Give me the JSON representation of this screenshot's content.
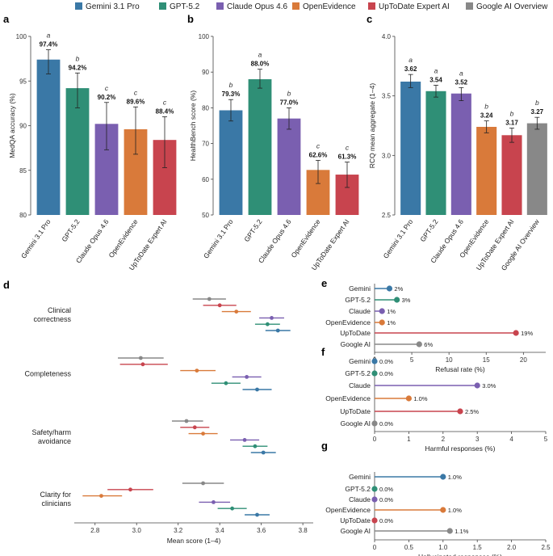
{
  "legend": [
    {
      "name": "Gemini 3.1 Pro",
      "color": "#3a78a6"
    },
    {
      "name": "GPT-5.2",
      "color": "#2f8f76"
    },
    {
      "name": "Claude Opus 4.6",
      "color": "#7a5fb0"
    },
    {
      "name": "OpenEvidence",
      "color": "#d97a3a"
    },
    {
      "name": "UpToDate Expert AI",
      "color": "#c8444e"
    },
    {
      "name": "Google AI Overview",
      "color": "#888888"
    }
  ],
  "chart_data": [
    {
      "panel": "a",
      "type": "bar",
      "ylabel": "MedQA accuracy (%)",
      "ylim": [
        80,
        100
      ],
      "yticks": [
        "80",
        "85",
        "90",
        "95",
        "100"
      ],
      "categories": [
        "Gemini 3.1 Pro",
        "GPT-5.2",
        "Claude Opus 4.6",
        "OpenEvidence",
        "UpToDate Expert AI"
      ],
      "values": [
        97.4,
        94.2,
        90.2,
        89.6,
        88.4
      ],
      "value_labels": [
        "97.4%",
        "94.2%",
        "90.2%",
        "89.6%",
        "88.4%"
      ],
      "err_low": [
        95.8,
        92.0,
        87.3,
        86.8,
        85.3
      ],
      "err_high": [
        98.5,
        95.9,
        92.6,
        92.1,
        91.0
      ],
      "significance": [
        "a",
        "b",
        "c",
        "c",
        "c"
      ]
    },
    {
      "panel": "b",
      "type": "bar",
      "ylabel": "HealthBench score (%)",
      "ylim": [
        50,
        100
      ],
      "yticks": [
        "50",
        "60",
        "70",
        "80",
        "90",
        "100"
      ],
      "categories": [
        "Gemini 3.1 Pro",
        "GPT-5.2",
        "Claude Opus 4.6",
        "OpenEvidence",
        "UpToDate Expert AI"
      ],
      "values": [
        79.3,
        88.0,
        77.0,
        62.6,
        61.3
      ],
      "value_labels": [
        "79.3%",
        "88.0%",
        "77.0%",
        "62.6%",
        "61.3%"
      ],
      "err_low": [
        76.3,
        85.5,
        74.0,
        58.8,
        57.7
      ],
      "err_high": [
        82.3,
        90.8,
        80.0,
        65.3,
        64.8
      ],
      "significance": [
        "b",
        "a",
        "b",
        "c",
        "c"
      ]
    },
    {
      "panel": "c",
      "type": "bar",
      "ylabel": "RCQ mean aggregate (1–4)",
      "ylim": [
        2.5,
        4.0
      ],
      "yticks": [
        "2.5",
        "3.0",
        "3.5",
        "4.0"
      ],
      "categories": [
        "Gemini 3.1 Pro",
        "GPT-5.2",
        "Claude Opus 4.6",
        "OpenEvidence",
        "UpToDate Expert AI",
        "Google AI Overview"
      ],
      "values": [
        3.62,
        3.54,
        3.52,
        3.24,
        3.17,
        3.27
      ],
      "value_labels": [
        "3.62",
        "3.54",
        "3.52",
        "3.24",
        "3.17",
        "3.27"
      ],
      "err_low": [
        3.57,
        3.49,
        3.46,
        3.19,
        3.11,
        3.22
      ],
      "err_high": [
        3.68,
        3.59,
        3.57,
        3.29,
        3.23,
        3.32
      ],
      "significance": [
        "a",
        "a",
        "a",
        "b",
        "b",
        "b"
      ]
    },
    {
      "panel": "d",
      "type": "scatter",
      "xlabel": "Mean score (1–4)",
      "xlim": [
        2.7,
        3.85
      ],
      "xticks": [
        "2.8",
        "3.0",
        "3.2",
        "3.4",
        "3.6",
        "3.8"
      ],
      "dimensions": [
        {
          "label_lines": [
            "Clinical",
            "correctness"
          ],
          "models": [
            {
              "model": "Google AI Overview",
              "mean": 3.35,
              "low": 3.27,
              "high": 3.43
            },
            {
              "model": "UpToDate Expert AI",
              "mean": 3.4,
              "low": 3.32,
              "high": 3.48
            },
            {
              "model": "OpenEvidence",
              "mean": 3.48,
              "low": 3.41,
              "high": 3.55
            },
            {
              "model": "Claude Opus 4.6",
              "mean": 3.65,
              "low": 3.59,
              "high": 3.71
            },
            {
              "model": "GPT-5.2",
              "mean": 3.63,
              "low": 3.57,
              "high": 3.69
            },
            {
              "model": "Gemini 3.1 Pro",
              "mean": 3.68,
              "low": 3.62,
              "high": 3.74
            }
          ]
        },
        {
          "label_lines": [
            "Completeness"
          ],
          "models": [
            {
              "model": "Google AI Overview",
              "mean": 3.02,
              "low": 2.91,
              "high": 3.13
            },
            {
              "model": "UpToDate Expert AI",
              "mean": 3.03,
              "low": 2.92,
              "high": 3.15
            },
            {
              "model": "OpenEvidence",
              "mean": 3.29,
              "low": 3.21,
              "high": 3.38
            },
            {
              "model": "Claude Opus 4.6",
              "mean": 3.53,
              "low": 3.46,
              "high": 3.6
            },
            {
              "model": "GPT-5.2",
              "mean": 3.43,
              "low": 3.36,
              "high": 3.5
            },
            {
              "model": "Gemini 3.1 Pro",
              "mean": 3.58,
              "low": 3.51,
              "high": 3.65
            }
          ]
        },
        {
          "label_lines": [
            "Safety/harm",
            "avoidance"
          ],
          "models": [
            {
              "model": "Google AI Overview",
              "mean": 3.24,
              "low": 3.17,
              "high": 3.32
            },
            {
              "model": "UpToDate Expert AI",
              "mean": 3.28,
              "low": 3.21,
              "high": 3.35
            },
            {
              "model": "OpenEvidence",
              "mean": 3.32,
              "low": 3.25,
              "high": 3.39
            },
            {
              "model": "Claude Opus 4.6",
              "mean": 3.52,
              "low": 3.45,
              "high": 3.59
            },
            {
              "model": "GPT-5.2",
              "mean": 3.57,
              "low": 3.51,
              "high": 3.63
            },
            {
              "model": "Gemini 3.1 Pro",
              "mean": 3.61,
              "low": 3.55,
              "high": 3.67
            }
          ]
        },
        {
          "label_lines": [
            "Clarity for",
            "clinicians"
          ],
          "models": [
            {
              "model": "Google AI Overview",
              "mean": 3.32,
              "low": 3.22,
              "high": 3.42
            },
            {
              "model": "UpToDate Expert AI",
              "mean": 2.97,
              "low": 2.86,
              "high": 3.08
            },
            {
              "model": "OpenEvidence",
              "mean": 2.83,
              "low": 2.74,
              "high": 2.93
            },
            {
              "model": "Claude Opus 4.6",
              "mean": 3.37,
              "low": 3.3,
              "high": 3.45
            },
            {
              "model": "GPT-5.2",
              "mean": 3.46,
              "low": 3.39,
              "high": 3.53
            },
            {
              "model": "Gemini 3.1 Pro",
              "mean": 3.58,
              "low": 3.52,
              "high": 3.64
            }
          ]
        }
      ]
    },
    {
      "panel": "e",
      "type": "bar",
      "orientation": "horizontal",
      "xlabel": "Refusal rate (%)",
      "xlim": [
        0,
        23
      ],
      "xticks": [
        "0",
        "5",
        "10",
        "15",
        "20"
      ],
      "categories": [
        "Gemini",
        "GPT-5.2",
        "Claude",
        "OpenEvidence",
        "UpToDate",
        "Google AI"
      ],
      "values": [
        2,
        3,
        1,
        1,
        19,
        6
      ],
      "value_labels": [
        "2%",
        "3%",
        "1%",
        "1%",
        "19%",
        "6%"
      ]
    },
    {
      "panel": "f",
      "type": "bar",
      "orientation": "horizontal",
      "xlabel": "Harmful responses (%)",
      "xlim": [
        0,
        5
      ],
      "xticks": [
        "0",
        "1",
        "2",
        "3",
        "4",
        "5"
      ],
      "categories": [
        "Gemini",
        "GPT-5.2",
        "Claude",
        "OpenEvidence",
        "UpToDate",
        "Google AI"
      ],
      "values": [
        0.0,
        0.0,
        3.0,
        1.0,
        2.5,
        0.0
      ],
      "value_labels": [
        "0.0%",
        "0.0%",
        "3.0%",
        "1.0%",
        "2.5%",
        "0.0%"
      ]
    },
    {
      "panel": "g",
      "type": "bar",
      "orientation": "horizontal",
      "xlabel": "Hallucinated responses (%)",
      "xlim": [
        0,
        2.5
      ],
      "xticks": [
        "0",
        "0.5",
        "1.0",
        "1.5",
        "2.0",
        "2.5"
      ],
      "categories": [
        "Gemini",
        "GPT-5.2",
        "Claude",
        "OpenEvidence",
        "UpToDate",
        "Google AI"
      ],
      "values": [
        1.0,
        0.0,
        0.0,
        1.0,
        0.0,
        1.1
      ],
      "value_labels": [
        "1.0%",
        "0.0%",
        "0.0%",
        "1.0%",
        "0.0%",
        "1.1%"
      ]
    }
  ]
}
